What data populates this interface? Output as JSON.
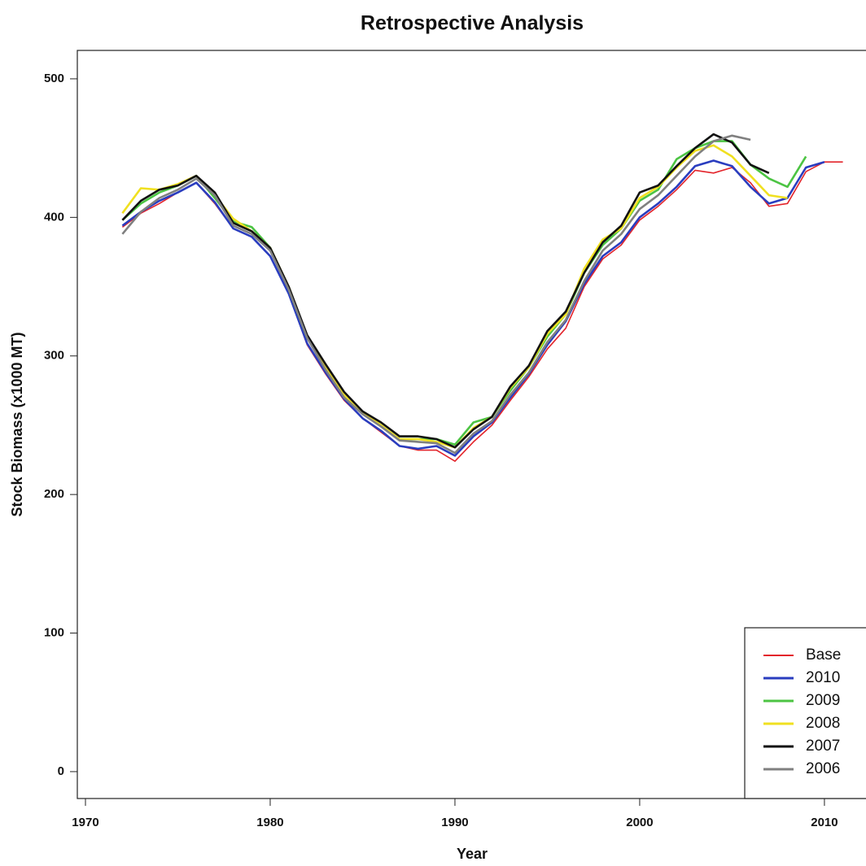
{
  "chart_data": {
    "type": "line",
    "title": "Retrospective Analysis",
    "x_label": "Year",
    "y_label": "Stock Biomass (x1000 MT)",
    "x": [
      1972,
      1973,
      1974,
      1975,
      1976,
      1977,
      1978,
      1979,
      1980,
      1981,
      1982,
      1983,
      1984,
      1985,
      1986,
      1987,
      1988,
      1989,
      1990,
      1991,
      1992,
      1993,
      1994,
      1995,
      1996,
      1997,
      1998,
      1999,
      2000,
      2001,
      2002,
      2003,
      2004,
      2005,
      2006,
      2007,
      2008,
      2009,
      2010,
      2011
    ],
    "series": [
      {
        "name": "Base",
        "color": "#e3242b",
        "values": [
          393,
          403,
          410,
          418,
          425,
          410,
          392,
          386,
          372,
          345,
          308,
          287,
          268,
          255,
          245,
          235,
          232,
          232,
          224,
          238,
          250,
          268,
          285,
          305,
          320,
          350,
          370,
          380,
          398,
          408,
          420,
          434,
          432,
          436,
          425,
          408,
          410,
          433,
          440,
          440
        ]
      },
      {
        "name": "2010",
        "color": "#2a3dbf",
        "values": [
          394,
          404,
          412,
          418,
          425,
          411,
          392,
          386,
          372,
          345,
          309,
          288,
          269,
          255,
          246,
          235,
          233,
          235,
          228,
          242,
          252,
          270,
          287,
          308,
          325,
          352,
          372,
          382,
          400,
          410,
          422,
          437,
          441,
          437,
          422,
          410,
          414,
          436,
          440,
          null
        ]
      },
      {
        "name": "2009",
        "color": "#4cc443",
        "values": [
          398,
          410,
          418,
          423,
          430,
          414,
          397,
          393,
          378,
          348,
          313,
          292,
          273,
          259,
          250,
          240,
          240,
          240,
          236,
          252,
          256,
          275,
          292,
          314,
          330,
          360,
          380,
          392,
          412,
          420,
          442,
          450,
          455,
          455,
          438,
          428,
          422,
          444,
          null,
          null
        ]
      },
      {
        "name": "2008",
        "color": "#f0e020",
        "values": [
          403,
          421,
          420,
          424,
          430,
          416,
          399,
          390,
          378,
          350,
          314,
          292,
          272,
          259,
          250,
          240,
          240,
          238,
          234,
          248,
          256,
          277,
          292,
          316,
          330,
          363,
          384,
          392,
          414,
          422,
          436,
          448,
          452,
          444,
          430,
          416,
          414,
          null,
          null,
          null
        ]
      },
      {
        "name": "2007",
        "color": "#111111",
        "values": [
          398,
          412,
          420,
          423,
          430,
          418,
          396,
          390,
          378,
          350,
          315,
          294,
          274,
          260,
          252,
          242,
          242,
          240,
          234,
          247,
          256,
          278,
          293,
          318,
          332,
          360,
          382,
          394,
          418,
          423,
          437,
          450,
          460,
          454,
          438,
          432,
          null,
          null,
          null,
          null
        ]
      },
      {
        "name": "2006",
        "color": "#808080",
        "values": [
          388,
          404,
          414,
          420,
          428,
          416,
          394,
          388,
          376,
          348,
          313,
          290,
          270,
          258,
          249,
          239,
          238,
          237,
          230,
          244,
          253,
          272,
          288,
          310,
          326,
          354,
          376,
          388,
          406,
          416,
          430,
          444,
          455,
          459,
          456,
          null,
          null,
          null,
          null,
          null
        ]
      }
    ],
    "xlim": [
      1969.56,
      2012.25
    ],
    "ylim": [
      -19.4,
      520.5
    ],
    "xticks": [
      1970,
      1980,
      1990,
      2000,
      2010
    ],
    "yticks": [
      0,
      100,
      200,
      300,
      400,
      500
    ],
    "legend": "bottomright"
  }
}
